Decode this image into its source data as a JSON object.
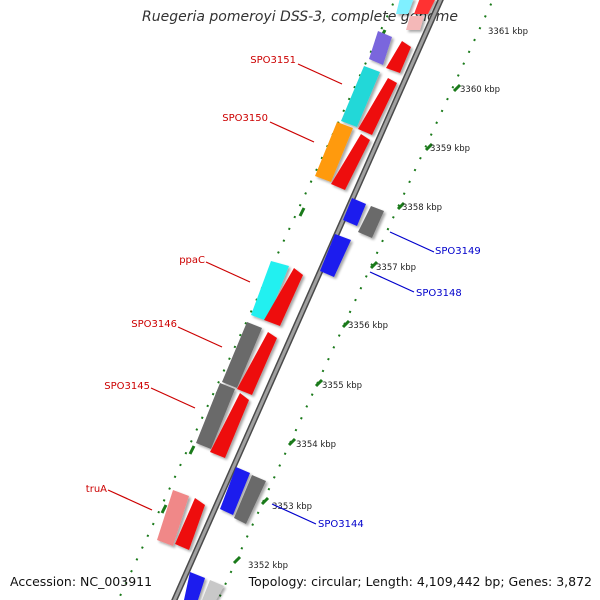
{
  "title": "Ruegeria pomeroyi DSS-3, complete genome",
  "footer": {
    "accession": "Accession: NC_003911",
    "summary": "Topology: circular; Length: 4,109,442 bp; Genes: 3,872"
  },
  "colors": {
    "backbone": "#8a8a8a",
    "ruler": "#1a7a1a",
    "label_forward": "#cc0000",
    "label_reverse": "#0000cc",
    "tick_text": "#222222"
  },
  "ruler": {
    "ticks": [
      {
        "label": "3361 kbp"
      },
      {
        "label": "3360 kbp"
      },
      {
        "label": "3359 kbp"
      },
      {
        "label": "3358 kbp"
      },
      {
        "label": "3357 kbp"
      },
      {
        "label": "3356 kbp"
      },
      {
        "label": "3355 kbp"
      },
      {
        "label": "3354 kbp"
      },
      {
        "label": "3353 kbp"
      },
      {
        "label": "3352 kbp"
      }
    ]
  },
  "genes_forward": [
    {
      "name": "SPO3151",
      "color": "cyan"
    },
    {
      "name": "SPO3150",
      "color": "orange"
    },
    {
      "name": "ppaC",
      "color": "cyan"
    },
    {
      "name": "SPO3146",
      "color": "gray"
    },
    {
      "name": "SPO3145",
      "color": "gray"
    },
    {
      "name": "truA",
      "color": "pink"
    }
  ],
  "genes_reverse": [
    {
      "name": "SPO3149",
      "color": "gray"
    },
    {
      "name": "SPO3148",
      "color": "blue"
    },
    {
      "name": "SPO3144",
      "color": "gray"
    }
  ]
}
